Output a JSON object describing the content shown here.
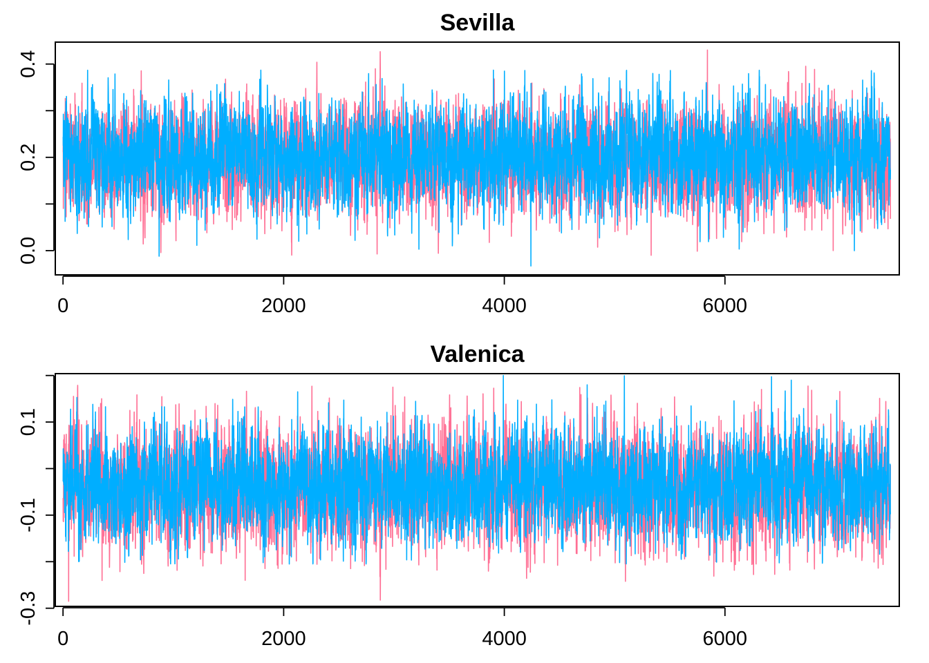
{
  "chart_data": [
    {
      "type": "line",
      "title": "Sevilla",
      "xlabel": "",
      "ylabel": "",
      "xlim": [
        -70,
        7580
      ],
      "ylim": [
        -0.052,
        0.447
      ],
      "x_ticks": [
        0,
        2000,
        4000,
        6000
      ],
      "x_tick_labels": [
        "0",
        "2000",
        "4000",
        "6000"
      ],
      "y_ticks": [
        0.0,
        0.2,
        0.4
      ],
      "y_tick_labels": [
        "0.0",
        "0.2",
        "0.4"
      ],
      "minor_y_ticks": [
        0.1,
        0.3
      ],
      "grid": false,
      "legend": "none",
      "n_iterations": 7500,
      "series": [
        {
          "color": "#ff6f94",
          "mean": 0.195,
          "sd": 0.06,
          "min": -0.01,
          "max": 0.43,
          "extremes": [
            [
              5840,
              0.43
            ],
            [
              2830,
              0.39
            ],
            [
              5330,
              -0.01
            ],
            [
              6980,
              0.0
            ]
          ]
        },
        {
          "color": "#00aeff",
          "mean": 0.2,
          "sd": 0.058,
          "min": -0.033,
          "max": 0.387,
          "extremes": [
            [
              4240,
              -0.033
            ],
            [
              870,
              -0.012
            ],
            [
              3900,
              0.387
            ],
            [
              4000,
              0.385
            ]
          ]
        }
      ]
    },
    {
      "type": "line",
      "title": "Valenica",
      "xlabel": "",
      "ylabel": "",
      "xlim": [
        -70,
        7580
      ],
      "ylim": [
        -0.296,
        0.204
      ],
      "x_ticks": [
        0,
        2000,
        4000,
        6000
      ],
      "x_tick_labels": [
        "0",
        "2000",
        "4000",
        "6000"
      ],
      "y_ticks": [
        -0.3,
        -0.1,
        0.1
      ],
      "y_tick_labels": [
        "-0.3",
        "-0.1",
        "0.1"
      ],
      "minor_y_ticks": [
        -0.2,
        0.0,
        0.2
      ],
      "grid": false,
      "legend": "none",
      "n_iterations": 7500,
      "series": [
        {
          "color": "#ff6f94",
          "mean": -0.04,
          "sd": 0.065,
          "min": -0.285,
          "max": 0.18,
          "extremes": [
            [
              50,
              -0.285
            ],
            [
              340,
              0.14
            ],
            [
              1650,
              -0.24
            ],
            [
              6330,
              0.17
            ]
          ]
        },
        {
          "color": "#00aeff",
          "mean": -0.035,
          "sd": 0.06,
          "min": -0.205,
          "max": 0.2,
          "extremes": [
            [
              3990,
              0.2
            ],
            [
              6600,
              0.19
            ],
            [
              2050,
              -0.205
            ],
            [
              4750,
              0.18
            ]
          ]
        }
      ]
    }
  ]
}
